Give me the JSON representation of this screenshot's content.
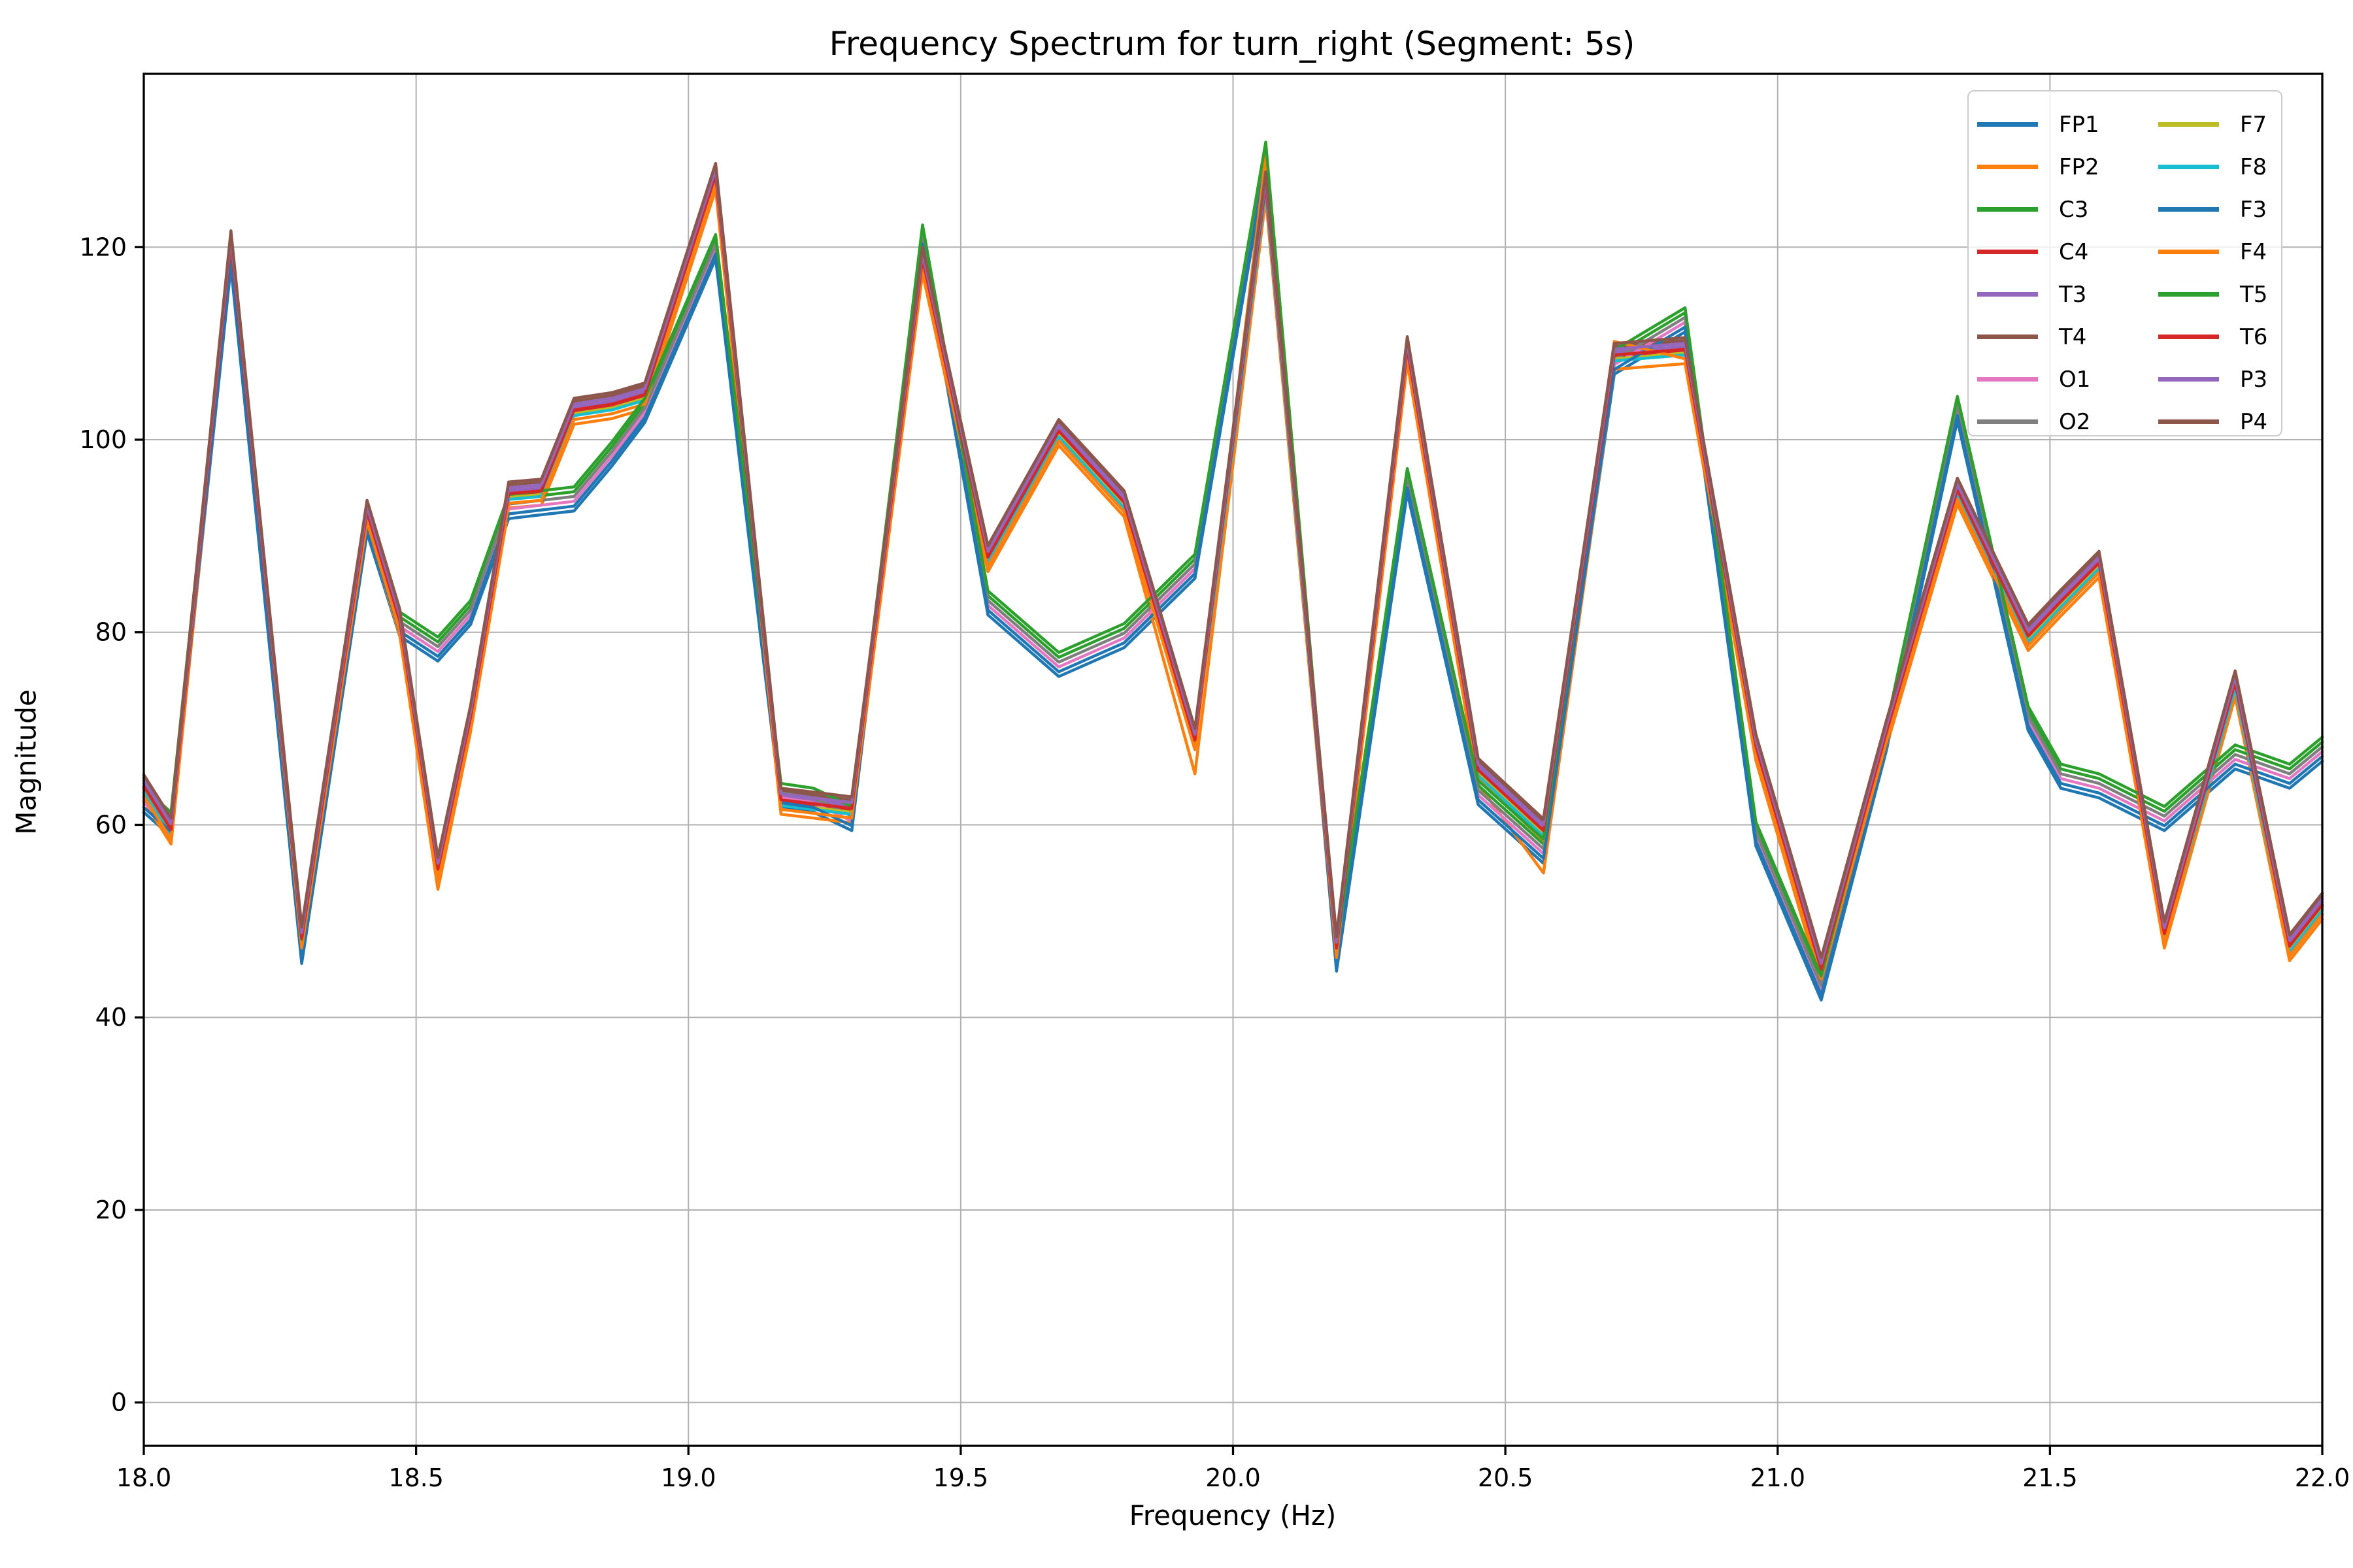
{
  "title": "Frequency Spectrum for turn_right (Segment: 5s)",
  "axes": {
    "xlabel": "Frequency (Hz)",
    "ylabel": "Magnitude"
  },
  "chart_data": {
    "type": "line",
    "title": "Frequency Spectrum for turn_right (Segment: 5s)",
    "xlabel": "Frequency (Hz)",
    "ylabel": "Magnitude",
    "xlim": [
      18.0,
      22.0
    ],
    "ylim": [
      -4.5,
      138.0
    ],
    "grid": true,
    "grid_color": "#b0b0b0",
    "legend_position": "upper right",
    "xticks": [
      18.0,
      18.5,
      19.0,
      19.5,
      20.0,
      20.5,
      21.0,
      21.5,
      22.0
    ],
    "xtick_labels": [
      "18.0",
      "18.5",
      "19.0",
      "19.5",
      "20.0",
      "20.5",
      "21.0",
      "21.5",
      "22.0"
    ],
    "yticks": [
      0,
      20,
      40,
      60,
      80,
      100,
      120
    ],
    "ytick_labels": [
      "0",
      "20",
      "40",
      "60",
      "80",
      "100",
      "120"
    ],
    "x": [
      18.0,
      18.05,
      18.16,
      18.29,
      18.41,
      18.47,
      18.54,
      18.6,
      18.67,
      18.73,
      18.79,
      18.86,
      18.92,
      19.05,
      19.17,
      19.23,
      19.3,
      19.43,
      19.55,
      19.68,
      19.8,
      19.93,
      20.06,
      20.19,
      20.32,
      20.45,
      20.57,
      20.7,
      20.83,
      20.96,
      21.08,
      21.2,
      21.33,
      21.46,
      21.52,
      21.59,
      21.71,
      21.84,
      21.94,
      22.0
    ],
    "series": [
      {
        "name": "FP1",
        "color": "#1f77b4",
        "values": [
          61.3,
          58.8,
          118.0,
          45.6,
          90.3,
          79.6,
          77.0,
          80.8,
          91.8,
          92.2,
          92.6,
          97.3,
          101.8,
          118.8,
          61.8,
          61.3,
          59.4,
          119.8,
          81.8,
          75.4,
          78.4,
          85.6,
          128.4,
          44.8,
          94.5,
          62.1,
          56.0,
          106.8,
          111.2,
          57.8,
          41.8,
          67.8,
          102.0,
          69.8,
          63.8,
          62.8,
          59.4,
          65.8,
          63.8,
          66.6
        ]
      },
      {
        "name": "FP2",
        "color": "#ff7f0e",
        "values": [
          62.5,
          58.0,
          119.0,
          46.7,
          91.0,
          79.7,
          53.3,
          69.7,
          92.9,
          93.2,
          101.6,
          102.2,
          103.2,
          126.0,
          61.1,
          60.7,
          60.2,
          117.3,
          86.3,
          99.4,
          92.0,
          65.3,
          125.1,
          45.7,
          108.0,
          64.2,
          55.0,
          107.3,
          107.9,
          66.7,
          43.5,
          68.2,
          93.3,
          78.1,
          81.7,
          85.7,
          47.2,
          73.3,
          45.9,
          50.2
        ]
      },
      {
        "name": "C3",
        "color": "#2ca02c",
        "values": [
          63.3,
          60.8,
          120.0,
          47.6,
          92.3,
          81.6,
          79.0,
          82.8,
          93.8,
          94.2,
          94.6,
          99.3,
          103.8,
          120.8,
          63.8,
          63.3,
          61.4,
          121.8,
          83.8,
          77.4,
          80.4,
          87.6,
          130.4,
          46.8,
          96.5,
          64.1,
          58.0,
          108.8,
          113.2,
          59.8,
          43.8,
          69.8,
          104.0,
          71.8,
          65.8,
          64.8,
          61.4,
          67.8,
          65.8,
          68.6
        ]
      },
      {
        "name": "C4",
        "color": "#d62728",
        "values": [
          63.8,
          59.3,
          120.3,
          48.0,
          92.3,
          81.0,
          55.2,
          71.0,
          94.2,
          94.5,
          102.9,
          103.5,
          104.5,
          127.3,
          62.4,
          62.0,
          61.5,
          118.6,
          87.6,
          100.7,
          93.3,
          68.6,
          126.4,
          47.0,
          109.3,
          65.5,
          59.2,
          108.6,
          109.2,
          68.0,
          44.8,
          69.5,
          94.6,
          79.4,
          83.0,
          87.0,
          48.5,
          74.6,
          47.2,
          51.5
        ]
      },
      {
        "name": "T3",
        "color": "#9467bd",
        "values": [
          64.3,
          59.8,
          120.8,
          48.5,
          92.8,
          81.5,
          55.7,
          71.5,
          94.7,
          95.0,
          103.4,
          104.0,
          105.0,
          127.8,
          62.9,
          62.5,
          62.0,
          119.1,
          88.1,
          101.2,
          93.8,
          69.1,
          126.9,
          47.5,
          109.8,
          66.0,
          59.7,
          109.1,
          109.7,
          68.5,
          45.3,
          70.0,
          95.1,
          79.9,
          83.5,
          87.5,
          49.0,
          75.1,
          47.7,
          52.0
        ]
      },
      {
        "name": "T4",
        "color": "#8c564b",
        "values": [
          64.9,
          60.4,
          121.4,
          49.1,
          93.4,
          82.1,
          56.3,
          72.1,
          95.3,
          95.6,
          104.0,
          104.6,
          105.6,
          128.4,
          63.5,
          63.1,
          62.6,
          119.7,
          88.7,
          101.8,
          94.4,
          69.7,
          127.5,
          48.1,
          110.4,
          66.6,
          60.3,
          109.7,
          110.3,
          69.1,
          45.9,
          70.6,
          95.7,
          80.5,
          84.1,
          88.1,
          49.6,
          75.7,
          48.3,
          52.6
        ]
      },
      {
        "name": "O1",
        "color": "#e377c2",
        "values": [
          62.3,
          59.8,
          119.0,
          46.6,
          91.3,
          80.6,
          78.0,
          81.8,
          92.8,
          93.2,
          93.6,
          98.3,
          102.8,
          119.8,
          62.8,
          62.3,
          60.4,
          120.8,
          82.8,
          76.4,
          79.4,
          86.6,
          129.4,
          45.8,
          95.5,
          63.1,
          57.0,
          107.8,
          112.2,
          58.8,
          42.8,
          68.8,
          103.0,
          70.8,
          64.8,
          63.8,
          60.4,
          66.8,
          64.8,
          67.6
        ]
      },
      {
        "name": "O2",
        "color": "#7f7f7f",
        "values": [
          62.8,
          60.3,
          119.5,
          47.1,
          91.8,
          81.1,
          78.5,
          82.3,
          93.3,
          93.7,
          94.1,
          98.8,
          103.3,
          120.3,
          63.3,
          62.8,
          60.9,
          121.3,
          83.3,
          76.9,
          79.9,
          87.1,
          129.9,
          46.3,
          96.0,
          63.6,
          57.5,
          108.3,
          112.7,
          59.3,
          43.3,
          69.3,
          103.5,
          71.3,
          65.3,
          64.3,
          60.9,
          67.3,
          65.3,
          68.1
        ]
      },
      {
        "name": "F7",
        "color": "#bcbd22",
        "values": [
          63.6,
          59.1,
          120.1,
          47.8,
          92.1,
          80.8,
          55.0,
          70.8,
          94.0,
          94.3,
          102.7,
          103.3,
          104.3,
          127.1,
          62.2,
          61.8,
          61.3,
          118.4,
          87.4,
          100.5,
          93.1,
          68.4,
          126.2,
          46.8,
          109.1,
          65.3,
          59.0,
          108.4,
          109.0,
          67.8,
          44.6,
          69.3,
          94.4,
          79.2,
          82.8,
          86.8,
          48.3,
          74.4,
          47.0,
          51.3
        ]
      },
      {
        "name": "F8",
        "color": "#17becf",
        "values": [
          63.4,
          58.9,
          119.9,
          47.6,
          91.9,
          80.6,
          54.8,
          70.6,
          93.8,
          94.1,
          102.5,
          103.1,
          104.1,
          126.9,
          62.0,
          61.6,
          61.1,
          118.2,
          87.2,
          100.3,
          92.9,
          68.2,
          126.0,
          46.6,
          108.9,
          65.1,
          58.8,
          108.2,
          108.8,
          67.6,
          44.4,
          69.1,
          94.2,
          79.0,
          82.6,
          86.6,
          48.1,
          74.2,
          46.8,
          51.1
        ]
      },
      {
        "name": "F3",
        "color": "#1f77b4",
        "values": [
          61.8,
          59.3,
          118.5,
          46.1,
          90.8,
          80.1,
          77.5,
          81.3,
          92.3,
          92.7,
          93.1,
          97.8,
          102.3,
          119.3,
          62.3,
          61.8,
          59.9,
          120.3,
          82.3,
          75.9,
          78.9,
          86.1,
          128.9,
          45.3,
          95.0,
          62.6,
          56.5,
          107.3,
          111.7,
          58.3,
          42.3,
          68.3,
          102.5,
          70.3,
          64.3,
          63.3,
          59.9,
          66.3,
          64.3,
          67.1
        ]
      },
      {
        "name": "F4",
        "color": "#ff7f0e",
        "values": [
          63.0,
          58.5,
          121.4,
          47.2,
          91.5,
          80.2,
          54.4,
          70.2,
          93.4,
          93.7,
          102.1,
          102.7,
          103.7,
          126.5,
          61.6,
          61.2,
          60.7,
          117.8,
          86.8,
          99.9,
          92.5,
          67.8,
          129.4,
          46.2,
          108.5,
          64.7,
          58.4,
          110.2,
          108.4,
          67.2,
          44.0,
          68.7,
          93.8,
          78.6,
          82.2,
          86.2,
          47.7,
          75.7,
          46.4,
          50.7
        ]
      },
      {
        "name": "T5",
        "color": "#2ca02c",
        "values": [
          63.8,
          61.3,
          120.5,
          48.1,
          92.8,
          82.1,
          79.5,
          83.3,
          94.3,
          94.7,
          95.1,
          99.8,
          104.3,
          121.3,
          64.3,
          63.8,
          61.9,
          122.3,
          84.3,
          77.9,
          80.9,
          88.1,
          130.9,
          47.3,
          97.0,
          64.6,
          58.5,
          109.3,
          113.7,
          60.3,
          44.3,
          70.3,
          104.5,
          72.3,
          66.3,
          65.3,
          61.9,
          68.3,
          66.3,
          69.1
        ]
      },
      {
        "name": "T6",
        "color": "#d62728",
        "values": [
          64.0,
          59.5,
          120.5,
          48.2,
          92.5,
          81.2,
          55.4,
          71.2,
          94.4,
          94.7,
          103.1,
          103.7,
          104.7,
          127.5,
          62.6,
          62.2,
          61.7,
          118.8,
          87.8,
          100.9,
          93.5,
          68.8,
          126.6,
          47.2,
          109.5,
          65.7,
          59.4,
          108.8,
          109.4,
          68.2,
          45.0,
          69.7,
          94.8,
          79.6,
          83.2,
          87.2,
          48.7,
          74.8,
          47.4,
          51.7
        ]
      },
      {
        "name": "P3",
        "color": "#9467bd",
        "values": [
          64.6,
          60.1,
          121.1,
          48.8,
          93.1,
          81.8,
          56.0,
          71.8,
          95.0,
          95.3,
          103.7,
          104.3,
          105.3,
          128.1,
          63.2,
          62.8,
          62.3,
          119.4,
          88.4,
          101.5,
          94.1,
          69.4,
          127.2,
          47.8,
          110.1,
          66.3,
          60.0,
          109.4,
          110.0,
          68.8,
          45.6,
          70.3,
          95.4,
          80.2,
          83.8,
          87.8,
          49.3,
          75.4,
          48.0,
          52.3
        ]
      },
      {
        "name": "P4",
        "color": "#8c564b",
        "values": [
          65.2,
          60.7,
          121.7,
          49.4,
          93.7,
          82.4,
          56.6,
          72.4,
          95.6,
          95.9,
          104.3,
          104.9,
          105.9,
          128.7,
          63.8,
          63.4,
          62.9,
          120.0,
          89.0,
          102.1,
          94.7,
          70.0,
          127.8,
          48.4,
          110.7,
          66.9,
          60.6,
          110.0,
          110.6,
          69.4,
          46.2,
          70.9,
          96.0,
          80.8,
          84.4,
          88.4,
          49.9,
          76.0,
          48.6,
          52.9
        ]
      }
    ],
    "legend_columns": [
      [
        "FP1",
        "FP2",
        "C3",
        "C4",
        "T3",
        "T4",
        "O1",
        "O2"
      ],
      [
        "F7",
        "F8",
        "F3",
        "F4",
        "T5",
        "T6",
        "P3",
        "P4"
      ]
    ]
  },
  "style": {
    "line_width": 4.5,
    "spine_color": "#000000",
    "tick_color": "#000000",
    "background": "#ffffff"
  }
}
